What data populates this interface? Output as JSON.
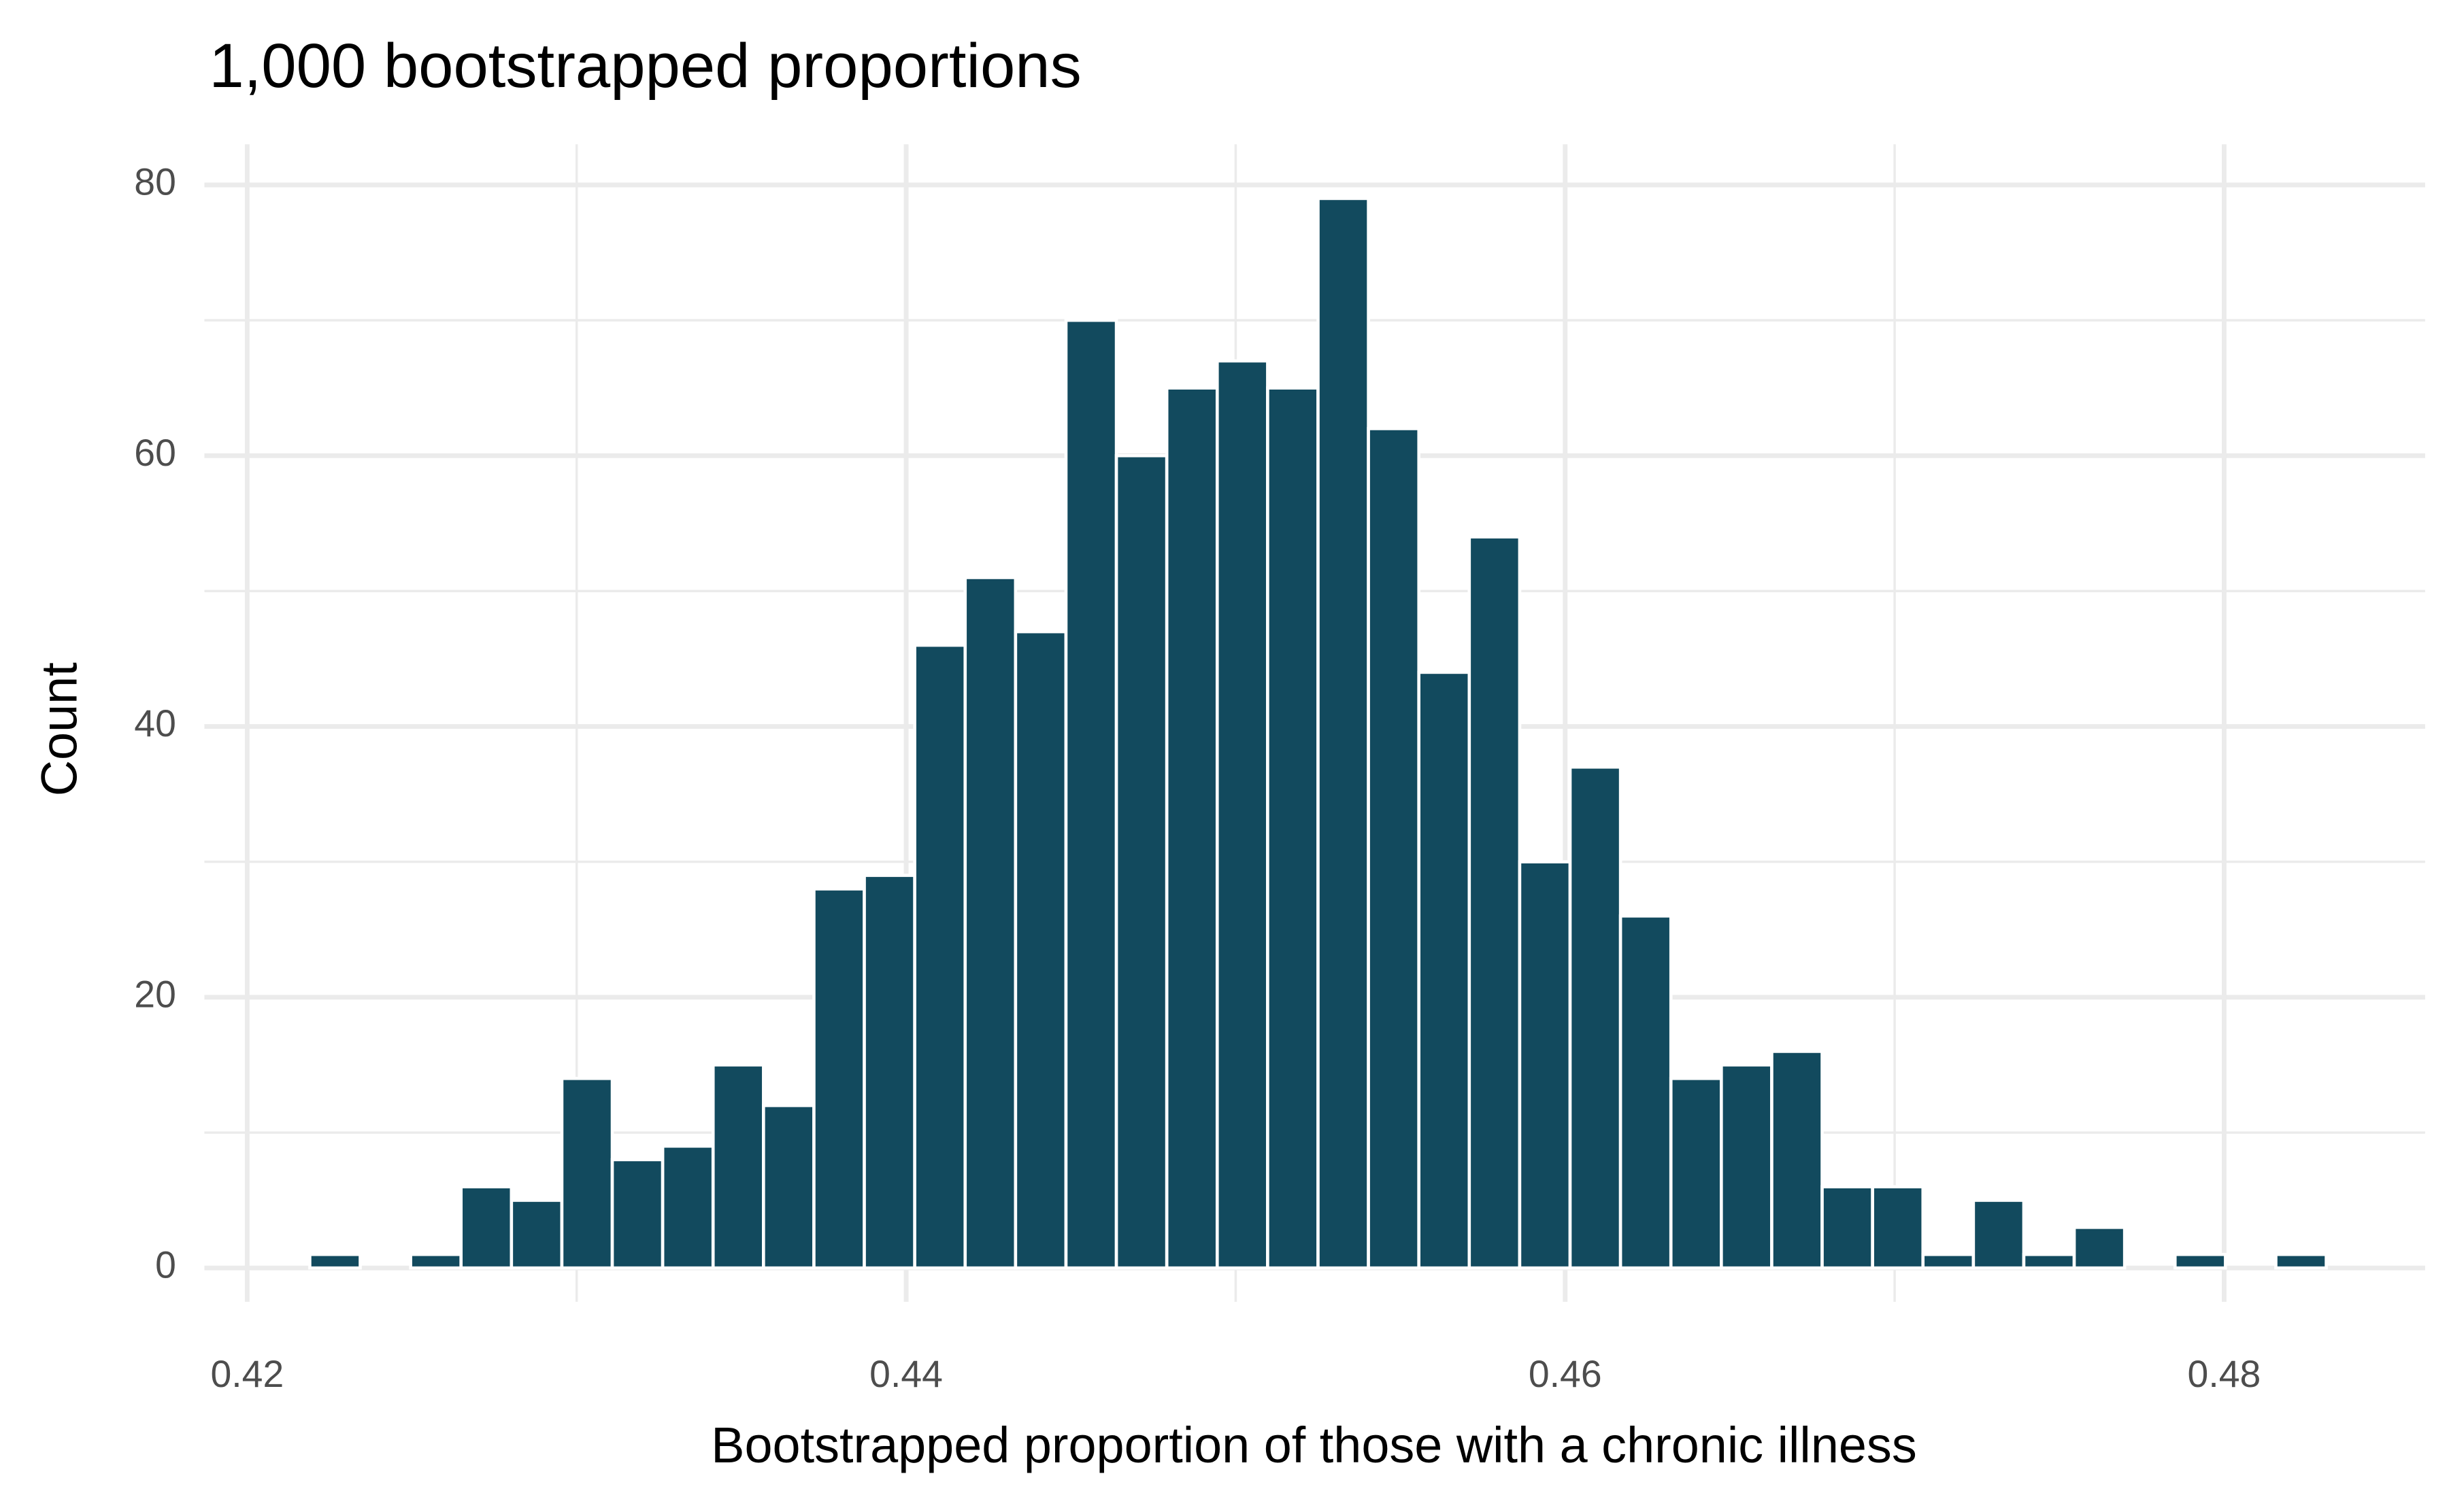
{
  "chart_data": {
    "type": "histogram",
    "title": "1,000 bootstrapped proportions",
    "xlabel": "Bootstrapped proportion of those with a chronic illness",
    "ylabel": "Count",
    "bins": [
      0.4219,
      0.42343,
      0.42496,
      0.42649,
      0.42802,
      0.42955,
      0.43108,
      0.43261,
      0.43414,
      0.43567,
      0.4372,
      0.43873,
      0.44026,
      0.44179,
      0.44332,
      0.44485,
      0.44638,
      0.44791,
      0.44944,
      0.45097,
      0.4525,
      0.45403,
      0.45556,
      0.45709,
      0.45862,
      0.46015,
      0.46168,
      0.46321,
      0.46474,
      0.46627,
      0.4678,
      0.46933,
      0.47086,
      0.47239,
      0.47392,
      0.47545,
      0.47698,
      0.47851,
      0.48004,
      0.48157,
      0.4831
    ],
    "values": [
      1,
      0,
      1,
      6,
      5,
      14,
      8,
      9,
      15,
      12,
      28,
      29,
      46,
      51,
      47,
      70,
      60,
      65,
      67,
      65,
      79,
      62,
      44,
      54,
      30,
      37,
      26,
      14,
      15,
      16,
      6,
      6,
      1,
      5,
      1,
      3,
      0,
      1,
      0,
      1
    ],
    "color": "#124a5e",
    "xlim": [
      0.4187,
      0.4861
    ],
    "xticks": [
      0.42,
      0.44,
      0.46,
      0.48
    ],
    "xminor": [
      0.43,
      0.45,
      0.47
    ],
    "ylim": [
      -2.5,
      83
    ],
    "yticks": [
      0,
      20,
      40,
      60,
      80
    ],
    "yminor": [
      10,
      30,
      50,
      70
    ],
    "grid": true
  }
}
